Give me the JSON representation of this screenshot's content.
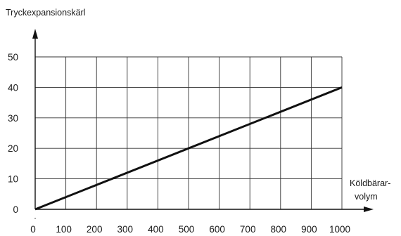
{
  "chart_data": {
    "type": "line",
    "title": "",
    "ylabel": "Tryckexpansionskärl",
    "xlabel_line1": "Köldbärar-",
    "xlabel_line2": "volym",
    "xlim": [
      0,
      1000
    ],
    "ylim": [
      0,
      50
    ],
    "xticks": [
      0,
      100,
      200,
      300,
      400,
      500,
      600,
      700,
      800,
      900,
      1000
    ],
    "yticks": [
      0,
      10,
      20,
      30,
      40,
      50
    ],
    "grid": true,
    "series": [
      {
        "x": [
          0,
          1000
        ],
        "y": [
          0,
          40
        ]
      }
    ]
  }
}
